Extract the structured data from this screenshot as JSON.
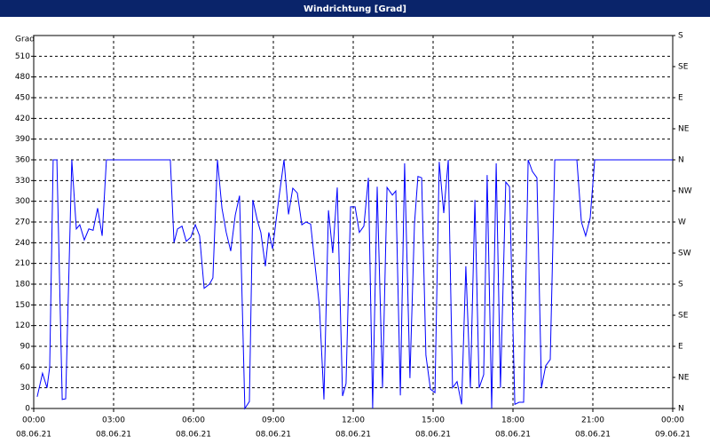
{
  "chart_data": {
    "type": "line",
    "title": "Windrichtung [Grad]",
    "ylabel": "Grad",
    "x": [
      0.13,
      0.33,
      0.5,
      0.6,
      0.73,
      0.87,
      1.07,
      1.2,
      1.43,
      1.6,
      1.73,
      1.9,
      2.07,
      2.23,
      2.4,
      2.57,
      2.73,
      5.13,
      5.27,
      5.4,
      5.57,
      5.73,
      5.9,
      6.07,
      6.23,
      6.4,
      6.6,
      6.73,
      6.9,
      7.07,
      7.23,
      7.4,
      7.57,
      7.73,
      7.93,
      8.1,
      8.23,
      8.4,
      8.53,
      8.7,
      8.83,
      8.97,
      9.2,
      9.4,
      9.57,
      9.73,
      9.9,
      10.07,
      10.23,
      10.4,
      10.57,
      10.73,
      10.9,
      11.07,
      11.23,
      11.4,
      11.6,
      11.73,
      11.9,
      12.07,
      12.23,
      12.4,
      12.57,
      12.73,
      12.9,
      13.1,
      13.27,
      13.47,
      13.6,
      13.77,
      13.93,
      14.13,
      14.3,
      14.43,
      14.57,
      14.73,
      14.9,
      15.07,
      15.23,
      15.4,
      15.57,
      15.73,
      15.9,
      16.07,
      16.23,
      16.4,
      16.57,
      16.73,
      16.9,
      17.03,
      17.2,
      17.37,
      17.53,
      17.73,
      17.87,
      18.07,
      18.23,
      18.4,
      18.57,
      18.73,
      18.9,
      19.07,
      19.23,
      19.4,
      19.57,
      20.4,
      20.57,
      20.73,
      20.9,
      21.07,
      24
    ],
    "series": [
      {
        "color": "#0000ff",
        "values": [
          17,
          51,
          30,
          60,
          360,
          360,
          13,
          14,
          360,
          260,
          266,
          244,
          260,
          258,
          290,
          250,
          360,
          360,
          240,
          260,
          264,
          242,
          248,
          266,
          250,
          174,
          180,
          189,
          360,
          290,
          255,
          228,
          280,
          308,
          0,
          10,
          302,
          272,
          255,
          206,
          255,
          231,
          302,
          360,
          281,
          319,
          312,
          266,
          270,
          267,
          206,
          148,
          13,
          287,
          225,
          320,
          18,
          36,
          292,
          292,
          255,
          264,
          334,
          0,
          321,
          30,
          320,
          309,
          315,
          19,
          355,
          44,
          267,
          336,
          334,
          77,
          28,
          23,
          357,
          283,
          360,
          30,
          39,
          6,
          206,
          30,
          302,
          30,
          49,
          338,
          0,
          355,
          30,
          328,
          321,
          6,
          9,
          9,
          360,
          343,
          334,
          30,
          62,
          71,
          360,
          360,
          270,
          250,
          276,
          360,
          360
        ]
      }
    ],
    "xlim": [
      0,
      24
    ],
    "xticks": [
      {
        "value": 0,
        "label": "00:00"
      },
      {
        "value": 3,
        "label": "03:00"
      },
      {
        "value": 6,
        "label": "06:00"
      },
      {
        "value": 9,
        "label": "09:00"
      },
      {
        "value": 12,
        "label": "12:00"
      },
      {
        "value": 15,
        "label": "15:00"
      },
      {
        "value": 18,
        "label": "18:00"
      },
      {
        "value": 21,
        "label": "21:00"
      },
      {
        "value": 24,
        "label": "00:00"
      }
    ],
    "xtick_dates": [
      "08.06.21",
      "08.06.21",
      "08.06.21",
      "08.06.21",
      "08.06.21",
      "08.06.21",
      "08.06.21",
      "08.06.21",
      "09.06.21"
    ],
    "ylim": [
      0,
      540
    ],
    "yticks": [
      0,
      30,
      60,
      90,
      120,
      150,
      180,
      210,
      240,
      270,
      300,
      330,
      360,
      390,
      420,
      450,
      480,
      510
    ],
    "y2lim": [
      0,
      540
    ],
    "y2ticks": [
      {
        "value": 0,
        "label": "N"
      },
      {
        "value": 45,
        "label": "NE"
      },
      {
        "value": 90,
        "label": "E"
      },
      {
        "value": 135,
        "label": "SE"
      },
      {
        "value": 180,
        "label": "S"
      },
      {
        "value": 225,
        "label": "SW"
      },
      {
        "value": 270,
        "label": "W"
      },
      {
        "value": 315,
        "label": "NW"
      },
      {
        "value": 360,
        "label": "N"
      },
      {
        "value": 405,
        "label": "NE"
      },
      {
        "value": 450,
        "label": "E"
      },
      {
        "value": 495,
        "label": "SE"
      },
      {
        "value": 540,
        "label": "S"
      }
    ],
    "grid": true
  }
}
